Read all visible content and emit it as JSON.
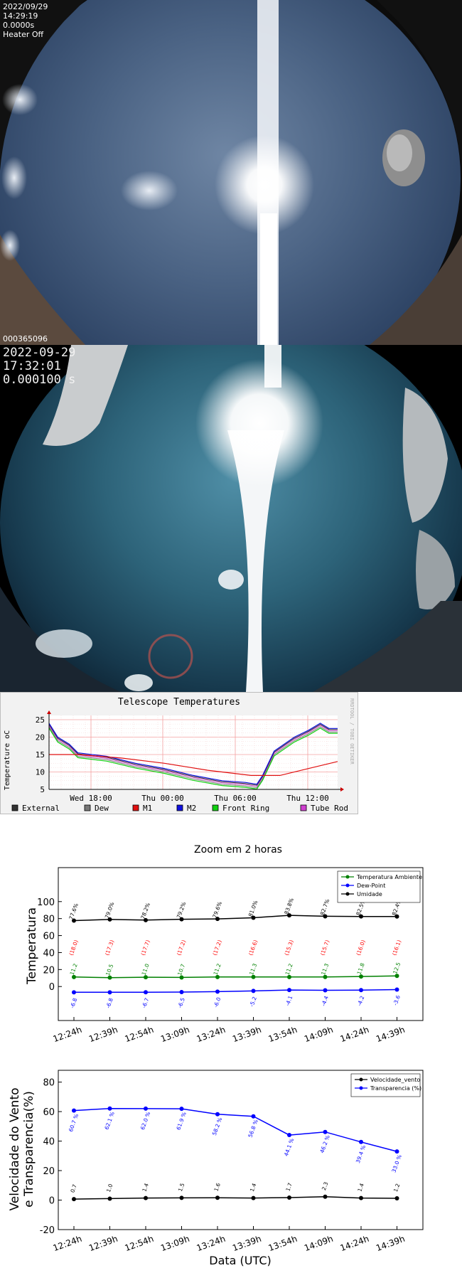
{
  "camera1": {
    "date": "2022/09/29",
    "time": "14:29:19",
    "exposure": "0.0000s",
    "heater": "Heater Off",
    "frame_id": "000365096"
  },
  "camera2": {
    "date": "2022-09-29",
    "time": "17:32:01",
    "exposure": "0.000100 s"
  },
  "telescope_chart": {
    "title": "Telescope Temperatures",
    "ylabel": "Temperature oC",
    "watermark": "RRDTOOL / TOBI OETIKER",
    "yticks": [
      "25",
      "20",
      "15",
      "10",
      "5"
    ],
    "xticks": [
      "Wed 18:00",
      "Thu 00:00",
      "Thu 06:00",
      "Thu 12:00"
    ],
    "legend": [
      {
        "label": "External",
        "color": "#333333"
      },
      {
        "label": "Dew",
        "color": "#777777"
      },
      {
        "label": "M1",
        "color": "#e01010"
      },
      {
        "label": "M2",
        "color": "#1010e0"
      },
      {
        "label": "Front Ring",
        "color": "#10d010"
      },
      {
        "label": "Tube Rod",
        "color": "#d040d0"
      }
    ]
  },
  "chart_data": [
    {
      "type": "line",
      "title": "Zoom em 2 horas",
      "ylabel": "Temperatura",
      "ylim": [
        -40,
        140
      ],
      "yticks": [
        0,
        20,
        40,
        60,
        80,
        100
      ],
      "x": [
        "12:24h",
        "12:39h",
        "12:54h",
        "13:09h",
        "13:24h",
        "13:39h",
        "13:54h",
        "14:09h",
        "14:24h",
        "14:39h"
      ],
      "legend_position": "top-right",
      "series": [
        {
          "name": "Temperatura Ambiente",
          "color": "#008000",
          "values": [
            11.2,
            10.5,
            11.0,
            10.7,
            11.2,
            11.3,
            11.2,
            11.3,
            11.8,
            12.5
          ]
        },
        {
          "name": "Dew-Point",
          "color": "#0000ff",
          "values": [
            -6.8,
            -6.8,
            -6.7,
            -6.5,
            -6.0,
            -5.2,
            -4.1,
            -4.4,
            -4.2,
            -3.6
          ]
        },
        {
          "name": "Umidade",
          "color": "#000000",
          "values": [
            77.6,
            79.0,
            78.2,
            79.2,
            79.6,
            81.0,
            83.8,
            82.7,
            82.5,
            82.4
          ]
        }
      ],
      "point_labels": {
        "umidade": [
          "77.6%",
          "79.0%",
          "78.2%",
          "79.2%",
          "79.6%",
          "81.0%",
          "83.8%",
          "82.7%",
          "82.5%",
          "82.4%"
        ],
        "red": [
          "(18.0)",
          "(17.3)",
          "(17.7)",
          "(17.2)",
          "(17.2)",
          "(16.6)",
          "(15.3)",
          "(15.7)",
          "(16.0)",
          "(16.1)"
        ],
        "temp": [
          "11.2",
          "10.5",
          "11.0",
          "10.7",
          "11.2",
          "11.3",
          "11.2",
          "11.3",
          "11.8",
          "12.5"
        ],
        "dew": [
          "-6.8",
          "-6.8",
          "-6.7",
          "-6.5",
          "-6.0",
          "-5.2",
          "-4.1",
          "-4.4",
          "-4.2",
          "-3.6"
        ]
      },
      "red_label_color": "#ff0000"
    },
    {
      "type": "line",
      "ylabel_line1": "Velocidade do Vento",
      "ylabel_line2": "e Transparencia(%)",
      "xlabel": "Data (UTC)",
      "ylim": [
        -20,
        88
      ],
      "yticks": [
        -20,
        0,
        20,
        40,
        60,
        80
      ],
      "x": [
        "12:24h",
        "12:39h",
        "12:54h",
        "13:09h",
        "13:24h",
        "13:39h",
        "13:54h",
        "14:09h",
        "14:24h",
        "14:39h"
      ],
      "legend_position": "top-right",
      "series": [
        {
          "name": "Velocidade_vento",
          "color": "#000000",
          "values": [
            0.7,
            1.0,
            1.4,
            1.5,
            1.6,
            1.4,
            1.7,
            2.3,
            1.4,
            1.2
          ]
        },
        {
          "name": "Transparencia (%)",
          "color": "#0000ff",
          "values": [
            60.7,
            62.1,
            62.0,
            61.9,
            58.2,
            56.8,
            44.1,
            46.2,
            39.4,
            33.0
          ]
        }
      ],
      "point_labels": {
        "vento": [
          "0.7",
          "1.0",
          "1.4",
          "1.5",
          "1.6",
          "1.4",
          "1.7",
          "2.3",
          "1.4",
          "1.2"
        ],
        "transp": [
          "60.7 %",
          "62.1 %",
          "62.0 %",
          "61.9 %",
          "58.2 %",
          "56.8 %",
          "44.1 %",
          "46.2 %",
          "39.4 %",
          "33.0 %"
        ]
      }
    }
  ]
}
